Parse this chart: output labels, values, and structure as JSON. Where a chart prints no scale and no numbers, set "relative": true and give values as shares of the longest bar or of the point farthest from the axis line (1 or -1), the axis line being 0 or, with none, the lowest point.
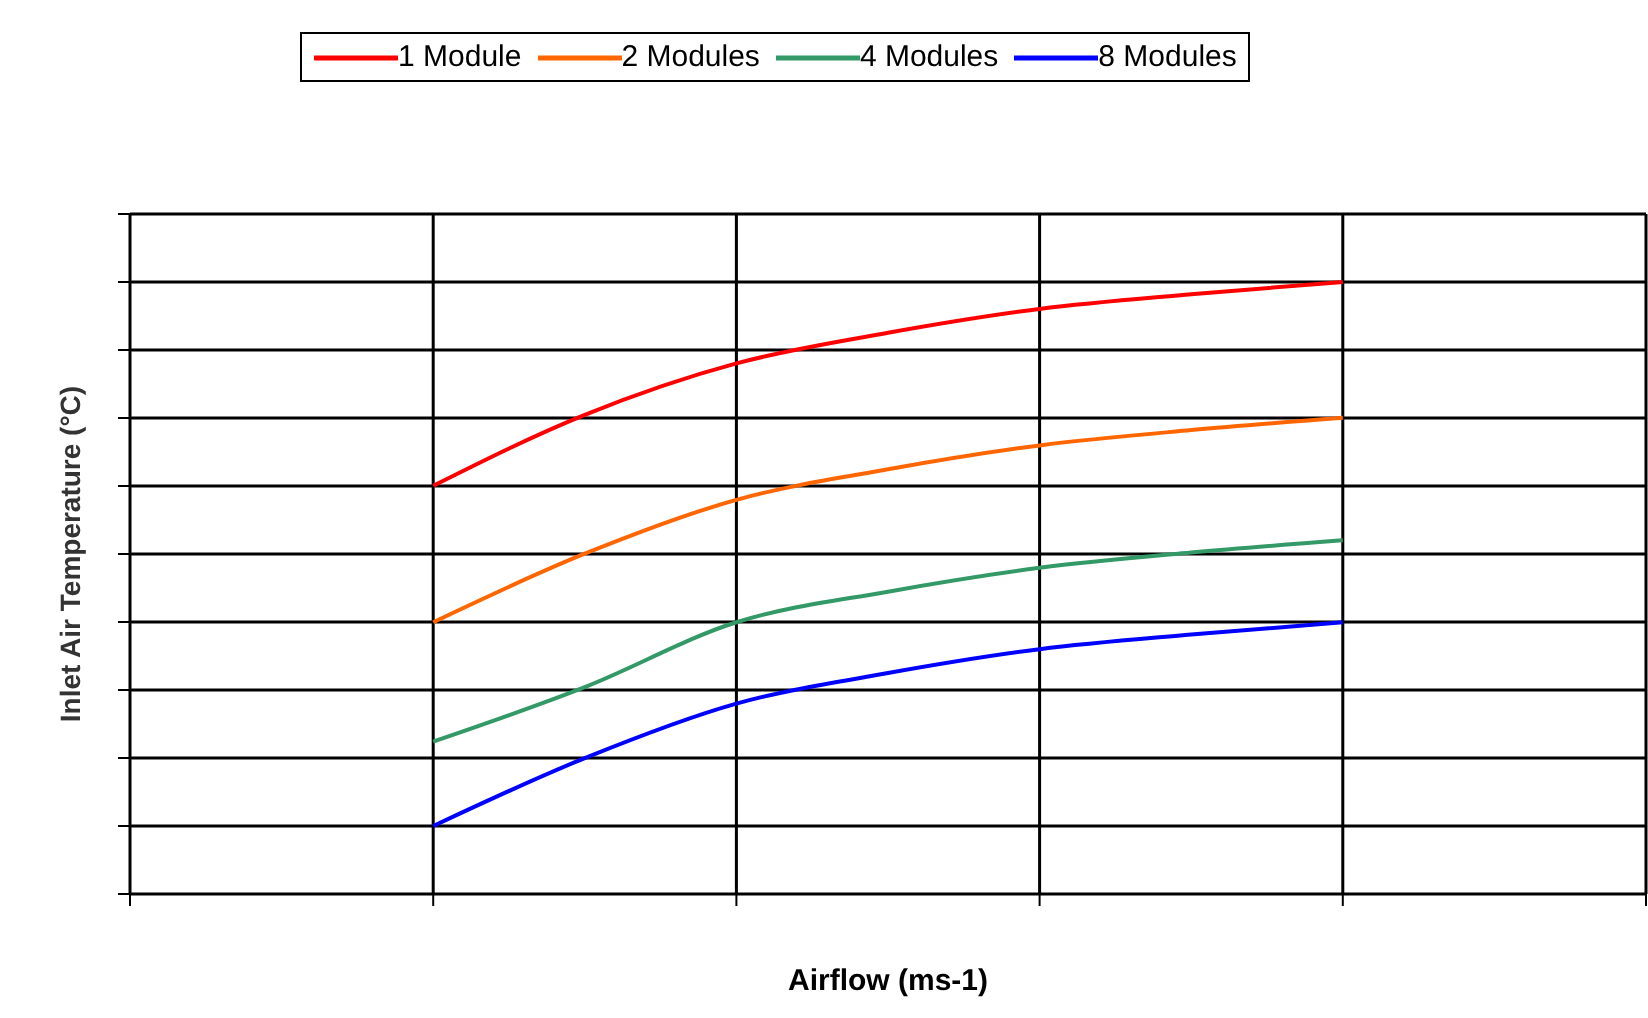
{
  "chart_data": {
    "type": "line",
    "relative": true,
    "xlabel": "Airflow (ms-1)",
    "ylabel": "Inlet Air Temperature (°C)",
    "categories": [
      null,
      null,
      null,
      null,
      null,
      null,
      null,
      null,
      null,
      null,
      null
    ],
    "grid": true,
    "legend": "top",
    "marker": "none",
    "line_style": "solid",
    "series": [
      {
        "name": "1 Module",
        "color": "#ff0000",
        "values": [
          null,
          null,
          0.667,
          0.783,
          0.867,
          0.917,
          0.956,
          0.98,
          1,
          null,
          null
        ]
      },
      {
        "name": "2 Modules",
        "color": "#ff6600",
        "values": [
          null,
          null,
          0.444,
          0.556,
          0.644,
          0.694,
          0.733,
          0.758,
          0.778,
          null,
          null
        ]
      },
      {
        "name": "4 Modules",
        "color": "#339966",
        "values": [
          null,
          null,
          0.249,
          0.338,
          0.444,
          0.494,
          0.533,
          0.558,
          0.578,
          null,
          null
        ]
      },
      {
        "name": "8 Modules",
        "color": "#0000ff",
        "values": [
          null,
          null,
          0.111,
          0.222,
          0.311,
          0.361,
          0.4,
          0.424,
          0.444,
          null,
          null
        ]
      }
    ]
  }
}
